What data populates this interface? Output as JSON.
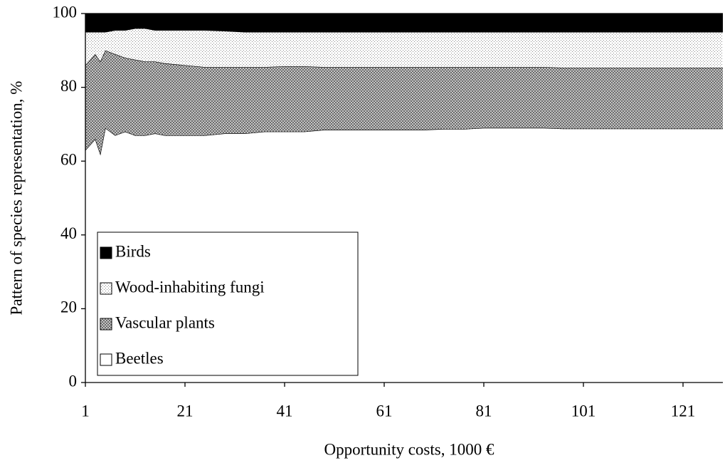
{
  "chart_data": {
    "type": "stacked_area",
    "xlabel": "Opportunity costs, 1000 €",
    "ylabel": "Pattern of species representation, %",
    "x": [
      1,
      3,
      4,
      5,
      7,
      9,
      11,
      13,
      15,
      17,
      21,
      25,
      29,
      33,
      37,
      41,
      45,
      49,
      53,
      57,
      61,
      65,
      69,
      73,
      77,
      81,
      85,
      89,
      93,
      97,
      101,
      105,
      109,
      113,
      117,
      121,
      125,
      129
    ],
    "series": [
      {
        "name": "Beetles",
        "color": "#ffffff",
        "pattern": "none",
        "values": [
          63,
          66,
          62,
          69,
          67,
          68,
          67,
          67,
          67.5,
          67,
          67,
          67,
          67.5,
          67.5,
          68,
          68,
          68,
          68.5,
          68.5,
          68.5,
          68.5,
          68.5,
          68.5,
          68.7,
          68.7,
          69,
          69,
          69,
          69,
          68.8,
          68.8,
          68.8,
          68.8,
          68.8,
          68.8,
          68.8,
          68.8,
          68.8
        ]
      },
      {
        "name": "Vascular plants",
        "color": "#000000",
        "pattern": "crosshatch",
        "values": [
          23,
          23,
          25,
          21,
          22,
          20,
          20.5,
          20,
          19.5,
          19.5,
          19,
          18.5,
          18,
          18,
          17.5,
          17.7,
          17.7,
          17,
          17,
          17,
          17,
          17,
          17,
          16.8,
          16.8,
          16.5,
          16.5,
          16.5,
          16.5,
          16.5,
          16.5,
          16.5,
          16.5,
          16.5,
          16.5,
          16.5,
          16.5,
          16.5
        ]
      },
      {
        "name": "Wood-inhabiting fungi",
        "color": "#000000",
        "pattern": "dots",
        "values": [
          9,
          6,
          8,
          5,
          6.5,
          7.5,
          8.5,
          9,
          8.5,
          9,
          9.5,
          10,
          9.8,
          9.5,
          9.5,
          9.3,
          9.3,
          9.5,
          9.5,
          9.5,
          9.5,
          9.5,
          9.5,
          9.5,
          9.5,
          9.5,
          9.5,
          9.5,
          9.5,
          9.7,
          9.7,
          9.7,
          9.7,
          9.7,
          9.7,
          9.7,
          9.7,
          9.7
        ]
      },
      {
        "name": "Birds",
        "color": "#000000",
        "pattern": "solid",
        "values": [
          5,
          5,
          5,
          5,
          4.5,
          4.5,
          4,
          4,
          4.5,
          4.5,
          4.5,
          4.5,
          4.7,
          5,
          5,
          5,
          5,
          5,
          5,
          5,
          5,
          5,
          5,
          5,
          5,
          5,
          5,
          5,
          5,
          5,
          5,
          5,
          5,
          5,
          5,
          5,
          5,
          5
        ]
      }
    ],
    "xlim": [
      1,
      129
    ],
    "xticks": [
      1,
      21,
      41,
      61,
      81,
      101,
      121
    ],
    "ylim": [
      0,
      100
    ],
    "yticks": [
      0,
      20,
      40,
      60,
      80,
      100
    ],
    "legend": "lower-left"
  }
}
